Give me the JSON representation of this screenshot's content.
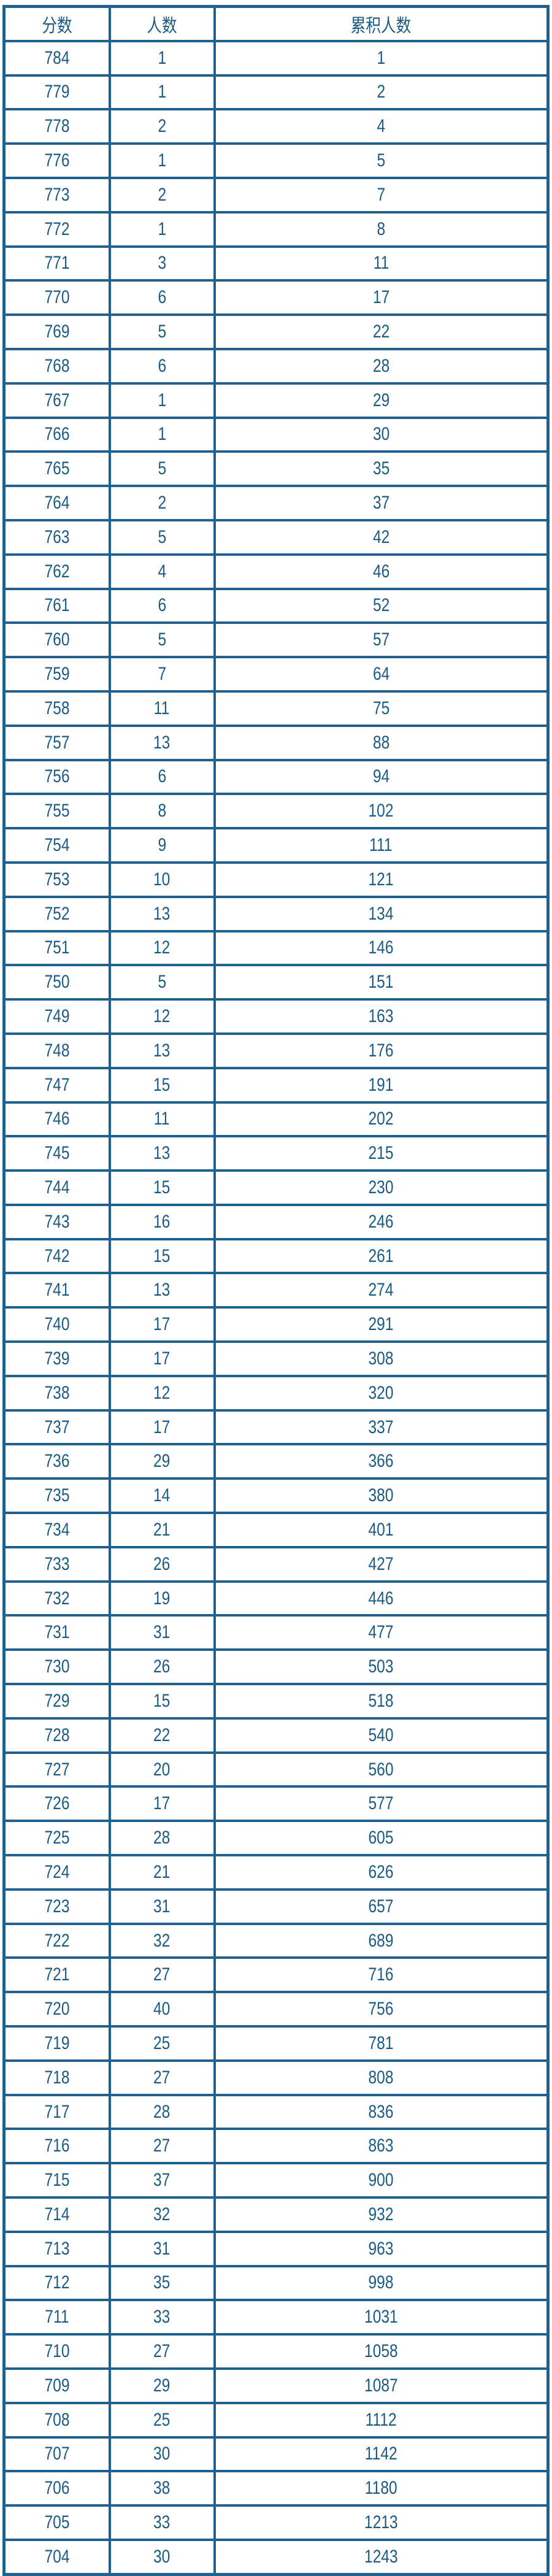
{
  "colors": {
    "border": "#1f6190",
    "text": "#1b5a82"
  },
  "table": {
    "headers": [
      "分数",
      "人数",
      "累积人数"
    ],
    "rows": [
      [
        "784",
        "1",
        "1"
      ],
      [
        "779",
        "1",
        "2"
      ],
      [
        "778",
        "2",
        "4"
      ],
      [
        "776",
        "1",
        "5"
      ],
      [
        "773",
        "2",
        "7"
      ],
      [
        "772",
        "1",
        "8"
      ],
      [
        "771",
        "3",
        "11"
      ],
      [
        "770",
        "6",
        "17"
      ],
      [
        "769",
        "5",
        "22"
      ],
      [
        "768",
        "6",
        "28"
      ],
      [
        "767",
        "1",
        "29"
      ],
      [
        "766",
        "1",
        "30"
      ],
      [
        "765",
        "5",
        "35"
      ],
      [
        "764",
        "2",
        "37"
      ],
      [
        "763",
        "5",
        "42"
      ],
      [
        "762",
        "4",
        "46"
      ],
      [
        "761",
        "6",
        "52"
      ],
      [
        "760",
        "5",
        "57"
      ],
      [
        "759",
        "7",
        "64"
      ],
      [
        "758",
        "11",
        "75"
      ],
      [
        "757",
        "13",
        "88"
      ],
      [
        "756",
        "6",
        "94"
      ],
      [
        "755",
        "8",
        "102"
      ],
      [
        "754",
        "9",
        "111"
      ],
      [
        "753",
        "10",
        "121"
      ],
      [
        "752",
        "13",
        "134"
      ],
      [
        "751",
        "12",
        "146"
      ],
      [
        "750",
        "5",
        "151"
      ],
      [
        "749",
        "12",
        "163"
      ],
      [
        "748",
        "13",
        "176"
      ],
      [
        "747",
        "15",
        "191"
      ],
      [
        "746",
        "11",
        "202"
      ],
      [
        "745",
        "13",
        "215"
      ],
      [
        "744",
        "15",
        "230"
      ],
      [
        "743",
        "16",
        "246"
      ],
      [
        "742",
        "15",
        "261"
      ],
      [
        "741",
        "13",
        "274"
      ],
      [
        "740",
        "17",
        "291"
      ],
      [
        "739",
        "17",
        "308"
      ],
      [
        "738",
        "12",
        "320"
      ],
      [
        "737",
        "17",
        "337"
      ],
      [
        "736",
        "29",
        "366"
      ],
      [
        "735",
        "14",
        "380"
      ],
      [
        "734",
        "21",
        "401"
      ],
      [
        "733",
        "26",
        "427"
      ],
      [
        "732",
        "19",
        "446"
      ],
      [
        "731",
        "31",
        "477"
      ],
      [
        "730",
        "26",
        "503"
      ],
      [
        "729",
        "15",
        "518"
      ],
      [
        "728",
        "22",
        "540"
      ],
      [
        "727",
        "20",
        "560"
      ],
      [
        "726",
        "17",
        "577"
      ],
      [
        "725",
        "28",
        "605"
      ],
      [
        "724",
        "21",
        "626"
      ],
      [
        "723",
        "31",
        "657"
      ],
      [
        "722",
        "32",
        "689"
      ],
      [
        "721",
        "27",
        "716"
      ],
      [
        "720",
        "40",
        "756"
      ],
      [
        "719",
        "25",
        "781"
      ],
      [
        "718",
        "27",
        "808"
      ],
      [
        "717",
        "28",
        "836"
      ],
      [
        "716",
        "27",
        "863"
      ],
      [
        "715",
        "37",
        "900"
      ],
      [
        "714",
        "32",
        "932"
      ],
      [
        "713",
        "31",
        "963"
      ],
      [
        "712",
        "35",
        "998"
      ],
      [
        "711",
        "33",
        "1031"
      ],
      [
        "710",
        "27",
        "1058"
      ],
      [
        "709",
        "29",
        "1087"
      ],
      [
        "708",
        "25",
        "1112"
      ],
      [
        "707",
        "30",
        "1142"
      ],
      [
        "706",
        "38",
        "1180"
      ],
      [
        "705",
        "33",
        "1213"
      ],
      [
        "704",
        "30",
        "1243"
      ]
    ]
  }
}
